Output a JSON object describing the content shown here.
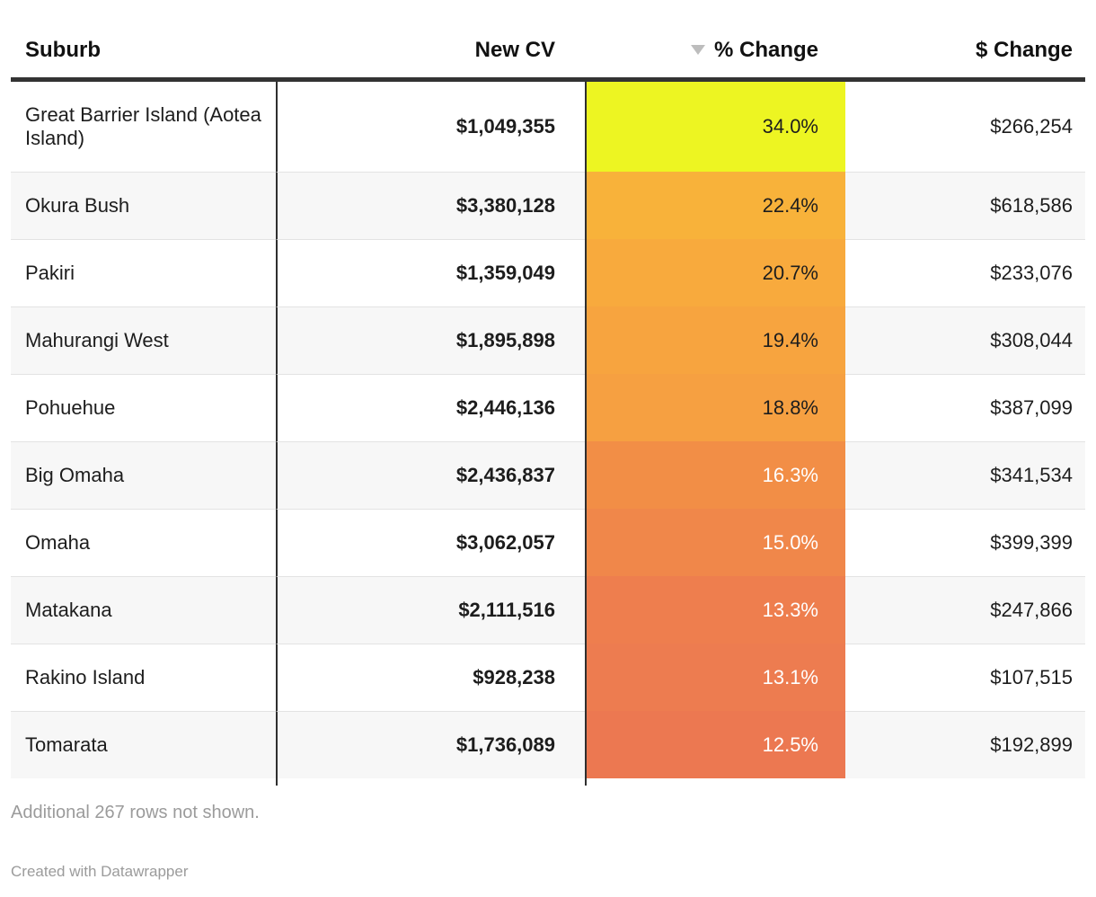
{
  "chart_data": {
    "type": "table",
    "columns": [
      "Suburb",
      "New CV",
      "% Change",
      "$ Change"
    ],
    "sorted_by": "% Change",
    "sort_order": "descending",
    "heatmap_column": "% Change",
    "heatmap_scale_colors": [
      "#EDF522",
      "#F8B23A",
      "#EC7851"
    ],
    "rows": [
      {
        "suburb": "Great Barrier Island (Aotea Island)",
        "new_cv": "$1,049,355",
        "pct_change": "34.0%",
        "dollar_change": "$266,254",
        "cell_color": "#EDF522",
        "text_color": "#1d1d1d"
      },
      {
        "suburb": "Okura Bush",
        "new_cv": "$3,380,128",
        "pct_change": "22.4%",
        "dollar_change": "$618,586",
        "cell_color": "#F8B23A",
        "text_color": "#1d1d1d"
      },
      {
        "suburb": "Pakiri",
        "new_cv": "$1,359,049",
        "pct_change": "20.7%",
        "dollar_change": "$233,076",
        "cell_color": "#F8AA3D",
        "text_color": "#1d1d1d"
      },
      {
        "suburb": "Mahurangi West",
        "new_cv": "$1,895,898",
        "pct_change": "19.4%",
        "dollar_change": "$308,044",
        "cell_color": "#F7A43F",
        "text_color": "#1d1d1d"
      },
      {
        "suburb": "Pohuehue",
        "new_cv": "$2,446,136",
        "pct_change": "18.8%",
        "dollar_change": "$387,099",
        "cell_color": "#F6A041",
        "text_color": "#1d1d1d"
      },
      {
        "suburb": "Big Omaha",
        "new_cv": "$2,436,837",
        "pct_change": "16.3%",
        "dollar_change": "$341,534",
        "cell_color": "#F28E46",
        "text_color": "#ffffff"
      },
      {
        "suburb": "Omaha",
        "new_cv": "$3,062,057",
        "pct_change": "15.0%",
        "dollar_change": "$399,399",
        "cell_color": "#F0874A",
        "text_color": "#ffffff"
      },
      {
        "suburb": "Matakana",
        "new_cv": "$2,111,516",
        "pct_change": "13.3%",
        "dollar_change": "$247,866",
        "cell_color": "#EE7E4E",
        "text_color": "#ffffff"
      },
      {
        "suburb": "Rakino Island",
        "new_cv": "$928,238",
        "pct_change": "13.1%",
        "dollar_change": "$107,515",
        "cell_color": "#ED7C50",
        "text_color": "#ffffff"
      },
      {
        "suburb": "Tomarata",
        "new_cv": "$1,736,089",
        "pct_change": "12.5%",
        "dollar_change": "$192,899",
        "cell_color": "#EC7851",
        "text_color": "#ffffff"
      }
    ]
  },
  "footer": {
    "note": "Additional 267 rows not shown.",
    "attribution": "Created with Datawrapper"
  },
  "colors": {
    "header_rule": "#333333",
    "column_divider": "#2f2f2f",
    "row_divider": "#e3e3e3",
    "alt_row_bg": "#f7f7f7",
    "muted_text": "#9b9b9b",
    "sort_arrow": "#bdbdbd"
  }
}
